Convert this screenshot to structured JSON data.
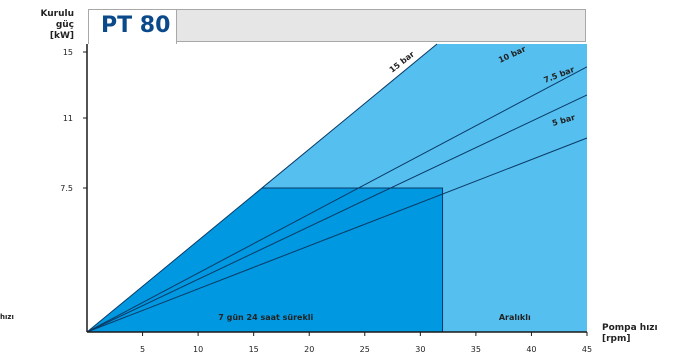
{
  "header": {
    "title": "PT 80"
  },
  "chart_data": {
    "type": "line",
    "ylabel": "Kurulu güç\n[kW]",
    "xlabel": "Pompa hızı\n[rpm]",
    "stray_label": "hızı",
    "xlim": [
      0,
      45
    ],
    "ylim": [
      0,
      15
    ],
    "xticks": [
      5,
      10,
      15,
      20,
      25,
      30,
      35,
      40,
      45
    ],
    "yticks": [
      7.5,
      11,
      15
    ],
    "series": [
      {
        "name": "15 bar",
        "x": [
          0,
          31.5
        ],
        "y": [
          0,
          15
        ]
      },
      {
        "name": "10 bar",
        "x": [
          0,
          45
        ],
        "y": [
          0,
          14.1
        ]
      },
      {
        "name": "7.5 bar",
        "x": [
          0,
          45
        ],
        "y": [
          0,
          12.4
        ]
      },
      {
        "name": "5 bar",
        "x": [
          0,
          45
        ],
        "y": [
          0,
          10.0
        ]
      }
    ],
    "regions": [
      {
        "label": "7 gün 24 saat sürekli",
        "x": [
          0,
          32
        ],
        "y_max": 7.5
      },
      {
        "label": "Aralıklı",
        "x": [
          32,
          45
        ]
      }
    ],
    "colors": {
      "continuous": "#0098e0",
      "intermittent": "#55bff0",
      "line": "#0a3a66",
      "axis": "#1a1a1a"
    }
  }
}
